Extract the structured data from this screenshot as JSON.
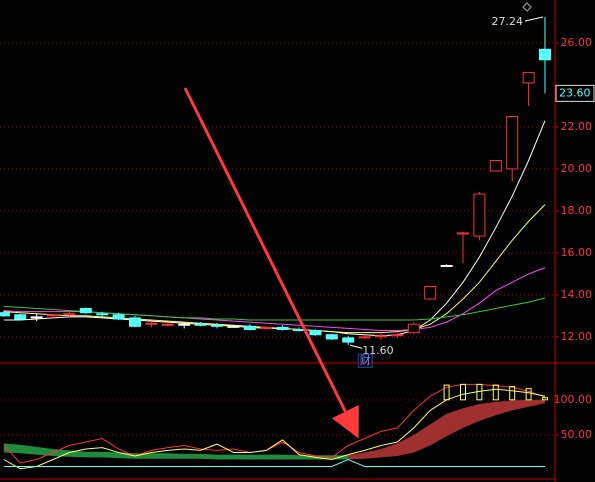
{
  "chart_data": [
    {
      "type": "candlestick",
      "open": [
        13.15,
        13.05,
        12.95,
        13.0,
        13.05,
        13.35,
        13.1,
        13.05,
        12.9,
        12.6,
        12.55,
        12.6,
        12.6,
        12.55,
        12.5,
        12.5,
        12.4,
        12.45,
        12.35,
        12.3,
        12.1,
        11.95,
        11.95,
        12.0,
        12.05,
        12.2,
        13.8,
        15.4,
        16.9,
        16.8,
        19.9,
        20.0,
        24.1,
        25.7
      ],
      "high": [
        13.25,
        13.1,
        13.1,
        13.1,
        13.2,
        13.4,
        13.2,
        13.15,
        13.0,
        12.75,
        12.7,
        12.7,
        12.7,
        12.65,
        12.55,
        12.6,
        12.5,
        12.55,
        12.45,
        12.35,
        12.15,
        12.05,
        12.1,
        12.2,
        12.2,
        12.7,
        14.4,
        15.45,
        17.0,
        18.9,
        20.4,
        22.5,
        24.6,
        27.24
      ],
      "low": [
        12.95,
        12.85,
        12.75,
        12.9,
        12.95,
        13.1,
        12.95,
        12.8,
        12.45,
        12.45,
        12.5,
        12.4,
        12.5,
        12.4,
        12.45,
        12.3,
        12.35,
        12.3,
        12.25,
        12.05,
        11.85,
        11.6,
        11.9,
        11.85,
        11.95,
        12.15,
        13.75,
        15.35,
        15.5,
        16.6,
        19.9,
        19.4,
        23.0,
        23.6
      ],
      "close": [
        13.0,
        12.85,
        12.95,
        13.05,
        13.1,
        13.15,
        13.05,
        12.85,
        12.5,
        12.65,
        12.6,
        12.6,
        12.55,
        12.5,
        12.5,
        12.35,
        12.45,
        12.35,
        12.3,
        12.1,
        11.9,
        11.75,
        12.0,
        12.05,
        12.1,
        12.6,
        14.4,
        15.4,
        16.95,
        18.8,
        20.4,
        22.5,
        24.6,
        25.2
      ],
      "up_color": "#ff3232",
      "down_color": "#54ffff",
      "flat_color": "#ffffff",
      "lines": [
        {
          "color": "#ffffff",
          "values": [
            12.8,
            12.8,
            12.85,
            12.9,
            12.95,
            12.95,
            12.9,
            12.85,
            12.8,
            12.75,
            12.7,
            12.65,
            12.6,
            12.55,
            12.5,
            12.45,
            12.4,
            12.4,
            12.35,
            12.3,
            12.25,
            12.15,
            12.1,
            12.05,
            12.1,
            12.3,
            12.8,
            13.6,
            14.6,
            15.8,
            17.2,
            18.7,
            20.4,
            22.3
          ]
        },
        {
          "color": "#ffff66",
          "values": [
            13.2,
            13.15,
            13.1,
            13.05,
            13.0,
            13.0,
            12.95,
            12.9,
            12.85,
            12.8,
            12.75,
            12.7,
            12.65,
            12.6,
            12.55,
            12.5,
            12.45,
            12.4,
            12.35,
            12.3,
            12.25,
            12.2,
            12.2,
            12.2,
            12.25,
            12.35,
            12.6,
            13.1,
            13.8,
            14.6,
            15.6,
            16.6,
            17.5,
            18.3
          ]
        },
        {
          "color": "#ff44ff",
          "values": [
            13.25,
            13.2,
            13.2,
            13.2,
            13.2,
            13.2,
            13.15,
            13.1,
            13.05,
            13.0,
            12.95,
            12.9,
            12.85,
            12.8,
            12.75,
            12.7,
            12.65,
            12.6,
            12.55,
            12.5,
            12.45,
            12.4,
            12.35,
            12.3,
            12.3,
            12.35,
            12.45,
            12.7,
            13.1,
            13.6,
            14.2,
            14.6,
            15.0,
            15.3
          ]
        },
        {
          "color": "#33cc33",
          "values": [
            13.45,
            13.4,
            13.35,
            13.3,
            13.25,
            13.2,
            13.15,
            13.1,
            13.05,
            13.0,
            12.95,
            12.9,
            12.9,
            12.85,
            12.85,
            12.8,
            12.8,
            12.8,
            12.8,
            12.8,
            12.8,
            12.8,
            12.8,
            12.8,
            12.8,
            12.8,
            12.85,
            12.95,
            13.05,
            13.2,
            13.35,
            13.5,
            13.65,
            13.85
          ]
        }
      ],
      "ylim": [
        10.8,
        28.05
      ],
      "yticks": [
        {
          "value": 12,
          "label": "12.00"
        },
        {
          "value": 14,
          "label": "14.00"
        },
        {
          "value": 16,
          "label": "16.00"
        },
        {
          "value": 18,
          "label": "18.00"
        },
        {
          "value": 20,
          "label": "20.00"
        },
        {
          "value": 22,
          "label": "22.00"
        },
        {
          "value": 26,
          "label": "26.00"
        }
      ],
      "high_label": 27.24,
      "low_label": {
        "value": 11.6,
        "label": "11.60"
      },
      "low_note": "财",
      "price_label": {
        "value": 23.6,
        "label": "23.60"
      }
    },
    {
      "type": "indicator",
      "areas": [
        {
          "color": "#1e8c3c",
          "upper": [
            38,
            36,
            33,
            30,
            28,
            26,
            26,
            25,
            24,
            24,
            24,
            23,
            23,
            22,
            22,
            22,
            22,
            22,
            21,
            21,
            21,
            21,
            null,
            null,
            null,
            null,
            null,
            null,
            null,
            null,
            null,
            null,
            null,
            null
          ],
          "lower": [
            25,
            24,
            22,
            20,
            19,
            18,
            18,
            17,
            16,
            16,
            16,
            16,
            16,
            15,
            15,
            15,
            15,
            15,
            15,
            15,
            15,
            15,
            null,
            null,
            null,
            null,
            null,
            null,
            null,
            null,
            null,
            null,
            null,
            null
          ]
        },
        {
          "color": "#a03030",
          "upper": [
            null,
            null,
            null,
            null,
            null,
            null,
            null,
            null,
            null,
            null,
            null,
            null,
            null,
            null,
            null,
            null,
            null,
            null,
            null,
            null,
            null,
            21,
            25,
            30,
            38,
            50,
            65,
            80,
            88,
            94,
            97,
            99,
            100,
            100
          ],
          "lower": [
            null,
            null,
            null,
            null,
            null,
            null,
            null,
            null,
            null,
            null,
            null,
            null,
            null,
            null,
            null,
            null,
            null,
            null,
            null,
            null,
            null,
            15,
            16,
            18,
            20,
            25,
            35,
            48,
            60,
            70,
            78,
            85,
            90,
            95
          ]
        }
      ],
      "lines": [
        {
          "color": "#ff3232",
          "values": [
            35,
            10,
            15,
            25,
            35,
            40,
            45,
            30,
            20,
            28,
            32,
            35,
            30,
            28,
            30,
            25,
            28,
            40,
            25,
            20,
            18,
            35,
            45,
            55,
            60,
            85,
            105,
            118,
            122,
            122,
            120,
            118,
            112,
            104
          ]
        },
        {
          "color": "#ffff66",
          "values": [
            15,
            2,
            5,
            15,
            25,
            30,
            32,
            25,
            20,
            25,
            28,
            30,
            28,
            37,
            25,
            25,
            28,
            43,
            22,
            18,
            15,
            22,
            28,
            35,
            40,
            60,
            85,
            100,
            108,
            112,
            115,
            113,
            110,
            105
          ]
        },
        {
          "color": "#54ffff",
          "values": [
            5,
            5,
            5,
            5,
            5,
            5,
            5,
            5,
            5,
            5,
            5,
            5,
            5,
            5,
            5,
            5,
            5,
            5,
            5,
            5,
            5,
            15,
            5,
            5,
            5,
            5,
            5,
            5,
            5,
            5,
            5,
            5,
            5,
            5
          ]
        }
      ],
      "bars": {
        "color": "#ffff66",
        "high": [
          null,
          null,
          null,
          null,
          null,
          null,
          null,
          null,
          null,
          null,
          null,
          null,
          null,
          null,
          null,
          null,
          null,
          null,
          null,
          null,
          null,
          null,
          null,
          null,
          null,
          null,
          null,
          121,
          122,
          122,
          121,
          119,
          116,
          103
        ],
        "low": [
          null,
          null,
          null,
          null,
          null,
          null,
          null,
          null,
          null,
          null,
          null,
          null,
          null,
          null,
          null,
          null,
          null,
          null,
          null,
          null,
          null,
          null,
          null,
          null,
          null,
          null,
          null,
          100,
          100,
          100,
          100,
          100,
          100,
          100
        ]
      },
      "ylim": [
        -17,
        151
      ],
      "yticks": [
        {
          "value": 50,
          "label": "50.00"
        },
        {
          "value": 100,
          "label": "100.00"
        }
      ]
    }
  ]
}
